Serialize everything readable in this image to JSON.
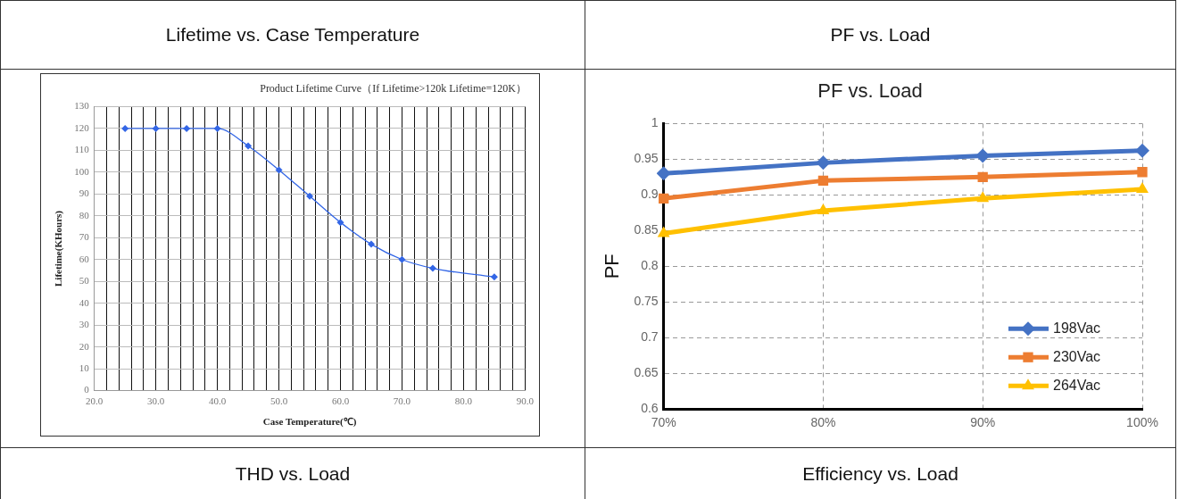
{
  "chart_data": [
    {
      "type": "line",
      "title": "Product Lifetime Curve（If Lifetime>120k Lifetime=120K）",
      "xlabel": "Case Temperature(℃)",
      "ylabel": "Lifetime(KHours)",
      "annotations": [
        "Lifetime vs. Case Temperature",
        "THD vs. Load"
      ],
      "x": [
        25,
        30,
        35,
        40,
        45,
        50,
        55,
        60,
        65,
        70,
        75,
        85
      ],
      "series": [
        {
          "color": "#3366e6",
          "marker": "diamond",
          "values": [
            120,
            120,
            120,
            120,
            112,
            101,
            89,
            77,
            67,
            60,
            56,
            52
          ]
        }
      ],
      "xlim": [
        20,
        90
      ],
      "xticks": [
        {
          "value": 20,
          "label": "20.0"
        },
        {
          "value": 22,
          "label": null
        },
        {
          "value": 24,
          "label": null
        },
        {
          "value": 26,
          "label": null
        },
        {
          "value": 28,
          "label": null
        },
        {
          "value": 30,
          "label": "30.0"
        },
        {
          "value": 32,
          "label": null
        },
        {
          "value": 34,
          "label": null
        },
        {
          "value": 36,
          "label": null
        },
        {
          "value": 38,
          "label": null
        },
        {
          "value": 40,
          "label": "40.0"
        },
        {
          "value": 42,
          "label": null
        },
        {
          "value": 44,
          "label": null
        },
        {
          "value": 46,
          "label": null
        },
        {
          "value": 48,
          "label": null
        },
        {
          "value": 50,
          "label": "50.0"
        },
        {
          "value": 52,
          "label": null
        },
        {
          "value": 54,
          "label": null
        },
        {
          "value": 56,
          "label": null
        },
        {
          "value": 58,
          "label": null
        },
        {
          "value": 60,
          "label": "60.0"
        },
        {
          "value": 62,
          "label": null
        },
        {
          "value": 64,
          "label": null
        },
        {
          "value": 66,
          "label": null
        },
        {
          "value": 68,
          "label": null
        },
        {
          "value": 70,
          "label": "70.0"
        },
        {
          "value": 72,
          "label": null
        },
        {
          "value": 74,
          "label": null
        },
        {
          "value": 76,
          "label": null
        },
        {
          "value": 78,
          "label": null
        },
        {
          "value": 80,
          "label": "80.0"
        },
        {
          "value": 82,
          "label": null
        },
        {
          "value": 84,
          "label": null
        },
        {
          "value": 86,
          "label": null
        },
        {
          "value": 88,
          "label": null
        },
        {
          "value": 90,
          "label": "90.0"
        }
      ],
      "ylim": [
        0,
        130
      ],
      "yticks": [
        0,
        10,
        20,
        30,
        40,
        50,
        60,
        70,
        80,
        90,
        100,
        110,
        120,
        130
      ],
      "grid": true,
      "legend": false,
      "line_style": "solid"
    },
    {
      "type": "line",
      "title": "PF vs. Load",
      "ylabel": "PF",
      "annotations": [
        "PF vs. Load",
        "Efficiency vs. Load"
      ],
      "categories": [
        "70%",
        "80%",
        "90%",
        "100%"
      ],
      "series": [
        {
          "name": "198Vac",
          "color": "#4472c4",
          "marker": "diamond",
          "values": [
            0.93,
            0.945,
            0.955,
            0.962
          ]
        },
        {
          "name": "230Vac",
          "color": "#ed7d31",
          "marker": "square",
          "values": [
            0.895,
            0.92,
            0.925,
            0.932
          ]
        },
        {
          "name": "264Vac",
          "color": "#ffc000",
          "marker": "triangle",
          "values": [
            0.846,
            0.878,
            0.895,
            0.908
          ]
        }
      ],
      "ylim": [
        0.6,
        1
      ],
      "yticks": [
        0.6,
        0.65,
        0.7,
        0.75,
        0.8,
        0.85,
        0.9,
        0.95,
        1
      ],
      "grid": true,
      "legend": "bottom right",
      "line_style": "solid"
    }
  ]
}
